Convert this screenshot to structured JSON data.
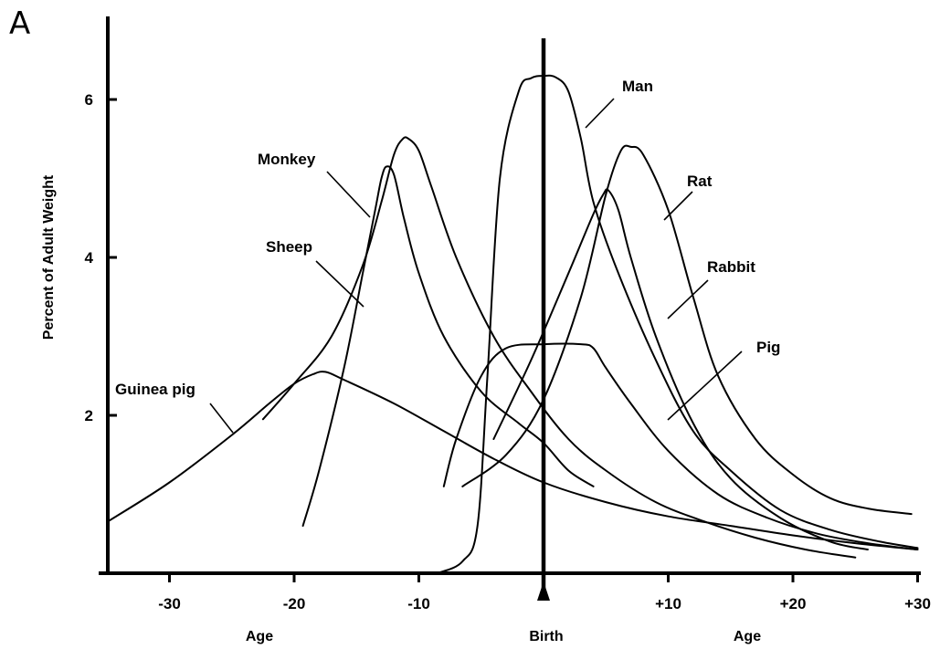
{
  "panel_label": "A",
  "chart_data": {
    "type": "line",
    "ylabel": "Percent of Adult Weight",
    "x_axis_labels": {
      "left": "Age",
      "center": "Birth",
      "right": "Age"
    },
    "xlim": [
      -35,
      30
    ],
    "ylim": [
      0,
      7
    ],
    "x_ticks": [
      {
        "value": -30,
        "label": "-30"
      },
      {
        "value": -20,
        "label": "-20"
      },
      {
        "value": -10,
        "label": "-10"
      },
      {
        "value": 10,
        "label": "+10"
      },
      {
        "value": 20,
        "label": "+20"
      },
      {
        "value": 30,
        "label": "+30"
      }
    ],
    "y_ticks": [
      {
        "value": 2,
        "label": "2"
      },
      {
        "value": 4,
        "label": "4"
      },
      {
        "value": 6,
        "label": "6"
      }
    ],
    "birth_at": 0,
    "series": [
      {
        "name": "Guinea pig",
        "x": [
          -35,
          -30,
          -25,
          -22,
          -20,
          -18.5,
          -17.5,
          -16,
          -12,
          -8,
          -4,
          0,
          5,
          10,
          15,
          20,
          25,
          30
        ],
        "y": [
          0.65,
          1.15,
          1.75,
          2.15,
          2.4,
          2.52,
          2.55,
          2.45,
          2.15,
          1.8,
          1.45,
          1.15,
          0.9,
          0.72,
          0.6,
          0.48,
          0.38,
          0.3
        ]
      },
      {
        "name": "Sheep",
        "x": [
          -19.3,
          -18,
          -16,
          -14.5,
          -13.5,
          -13,
          -12.6,
          -12,
          -11.2,
          -10,
          -8,
          -5,
          -2,
          0,
          2,
          4
        ],
        "y": [
          0.6,
          1.3,
          2.6,
          3.8,
          4.6,
          5.0,
          5.15,
          5.05,
          4.5,
          3.8,
          3.0,
          2.3,
          1.9,
          1.65,
          1.3,
          1.1
        ]
      },
      {
        "name": "Monkey",
        "x": [
          -22.5,
          -20,
          -17,
          -14.5,
          -13,
          -12,
          -11.3,
          -10.8,
          -10,
          -9,
          -7,
          -4,
          -1,
          2,
          5,
          9,
          13,
          17,
          21,
          25
        ],
        "y": [
          1.95,
          2.4,
          3.0,
          3.9,
          4.7,
          5.3,
          5.5,
          5.5,
          5.35,
          4.9,
          4.0,
          3.0,
          2.3,
          1.7,
          1.3,
          0.9,
          0.65,
          0.45,
          0.3,
          0.2
        ]
      },
      {
        "name": "Man",
        "x": [
          -8.5,
          -6.5,
          -5.3,
          -4.5,
          -3.5,
          -2,
          -1,
          0,
          1,
          2,
          3,
          4,
          6,
          9,
          12,
          15,
          19,
          23,
          27,
          30
        ],
        "y": [
          0.0,
          0.15,
          0.6,
          2.5,
          5.0,
          6.1,
          6.27,
          6.3,
          6.28,
          6.1,
          5.5,
          4.7,
          3.8,
          2.7,
          1.8,
          1.3,
          0.8,
          0.55,
          0.4,
          0.32
        ]
      },
      {
        "name": "Pig",
        "x": [
          -8,
          -7,
          -5,
          -3,
          0,
          3,
          4,
          5,
          7,
          10,
          14,
          18,
          22,
          26,
          30
        ],
        "y": [
          1.1,
          1.7,
          2.5,
          2.85,
          2.9,
          2.9,
          2.85,
          2.6,
          2.15,
          1.55,
          1.0,
          0.7,
          0.5,
          0.38,
          0.3
        ]
      },
      {
        "name": "Rabbit",
        "x": [
          -4,
          -1,
          2,
          4,
          4.8,
          5.2,
          6,
          7,
          9,
          12,
          15,
          19,
          23,
          26
        ],
        "y": [
          1.7,
          2.7,
          3.8,
          4.55,
          4.8,
          4.85,
          4.6,
          4.0,
          3.0,
          1.9,
          1.2,
          0.7,
          0.4,
          0.3
        ]
      },
      {
        "name": "Rat",
        "x": [
          -6.5,
          -3,
          0,
          3,
          5,
          6.2,
          7,
          8,
          10,
          12,
          14,
          17,
          20,
          23,
          26,
          29.5
        ],
        "y": [
          1.1,
          1.5,
          2.2,
          3.5,
          4.8,
          5.35,
          5.4,
          5.3,
          4.6,
          3.5,
          2.5,
          1.7,
          1.25,
          0.95,
          0.82,
          0.75
        ]
      }
    ],
    "annotations": [
      {
        "text": "Man",
        "series": "Man"
      },
      {
        "text": "Monkey",
        "series": "Monkey"
      },
      {
        "text": "Rat",
        "series": "Rat"
      },
      {
        "text": "Sheep",
        "series": "Sheep"
      },
      {
        "text": "Rabbit",
        "series": "Rabbit"
      },
      {
        "text": "Pig",
        "series": "Pig"
      },
      {
        "text": "Guinea pig",
        "series": "Guinea pig"
      }
    ]
  }
}
